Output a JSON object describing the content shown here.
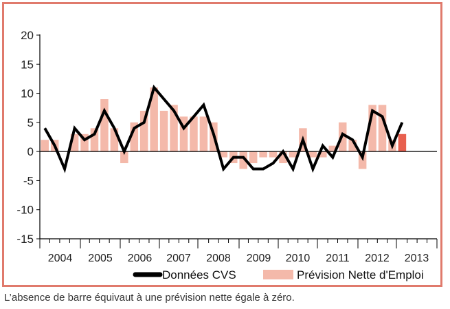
{
  "chart_data": {
    "type": "bar",
    "title": "",
    "xlabel": "",
    "ylabel": "",
    "ylim": [
      -15,
      20
    ],
    "yticks": [
      -15,
      -10,
      -5,
      0,
      5,
      10,
      15,
      20
    ],
    "years": [
      "2004",
      "2005",
      "2006",
      "2007",
      "2008",
      "2009",
      "2010",
      "2011",
      "2012",
      "2013"
    ],
    "quarters_per_year": 4,
    "start_quarter_index": 0,
    "grid": false,
    "legend_position": "bottom",
    "series": [
      {
        "name": "Prévision Nette d'Emploi",
        "kind": "bar",
        "color": "#f4b9aa",
        "last_color": "#e8604f",
        "values": [
          2,
          2,
          0,
          3,
          3,
          4,
          9,
          4,
          -2,
          5,
          7,
          11,
          7,
          8,
          6,
          6,
          6,
          5,
          -1,
          -2,
          -3,
          -2,
          -1,
          -1,
          -2,
          -1,
          4,
          -1,
          -1,
          1,
          5,
          2,
          -3,
          8,
          8,
          2,
          3
        ]
      },
      {
        "name": "Données CVS",
        "kind": "line",
        "color": "#000000",
        "values": [
          4,
          1,
          -3,
          4,
          2,
          3,
          7,
          4,
          0,
          4,
          5,
          11,
          9,
          7,
          4,
          6,
          8,
          3,
          -3,
          -1,
          -1,
          -3,
          -3,
          -2,
          0,
          -3,
          2,
          -3,
          1,
          -1,
          3,
          2,
          -1,
          7,
          6,
          1,
          5
        ]
      }
    ],
    "note": "L’absence de barre équivaut à une prévision nette égale à zéro."
  }
}
